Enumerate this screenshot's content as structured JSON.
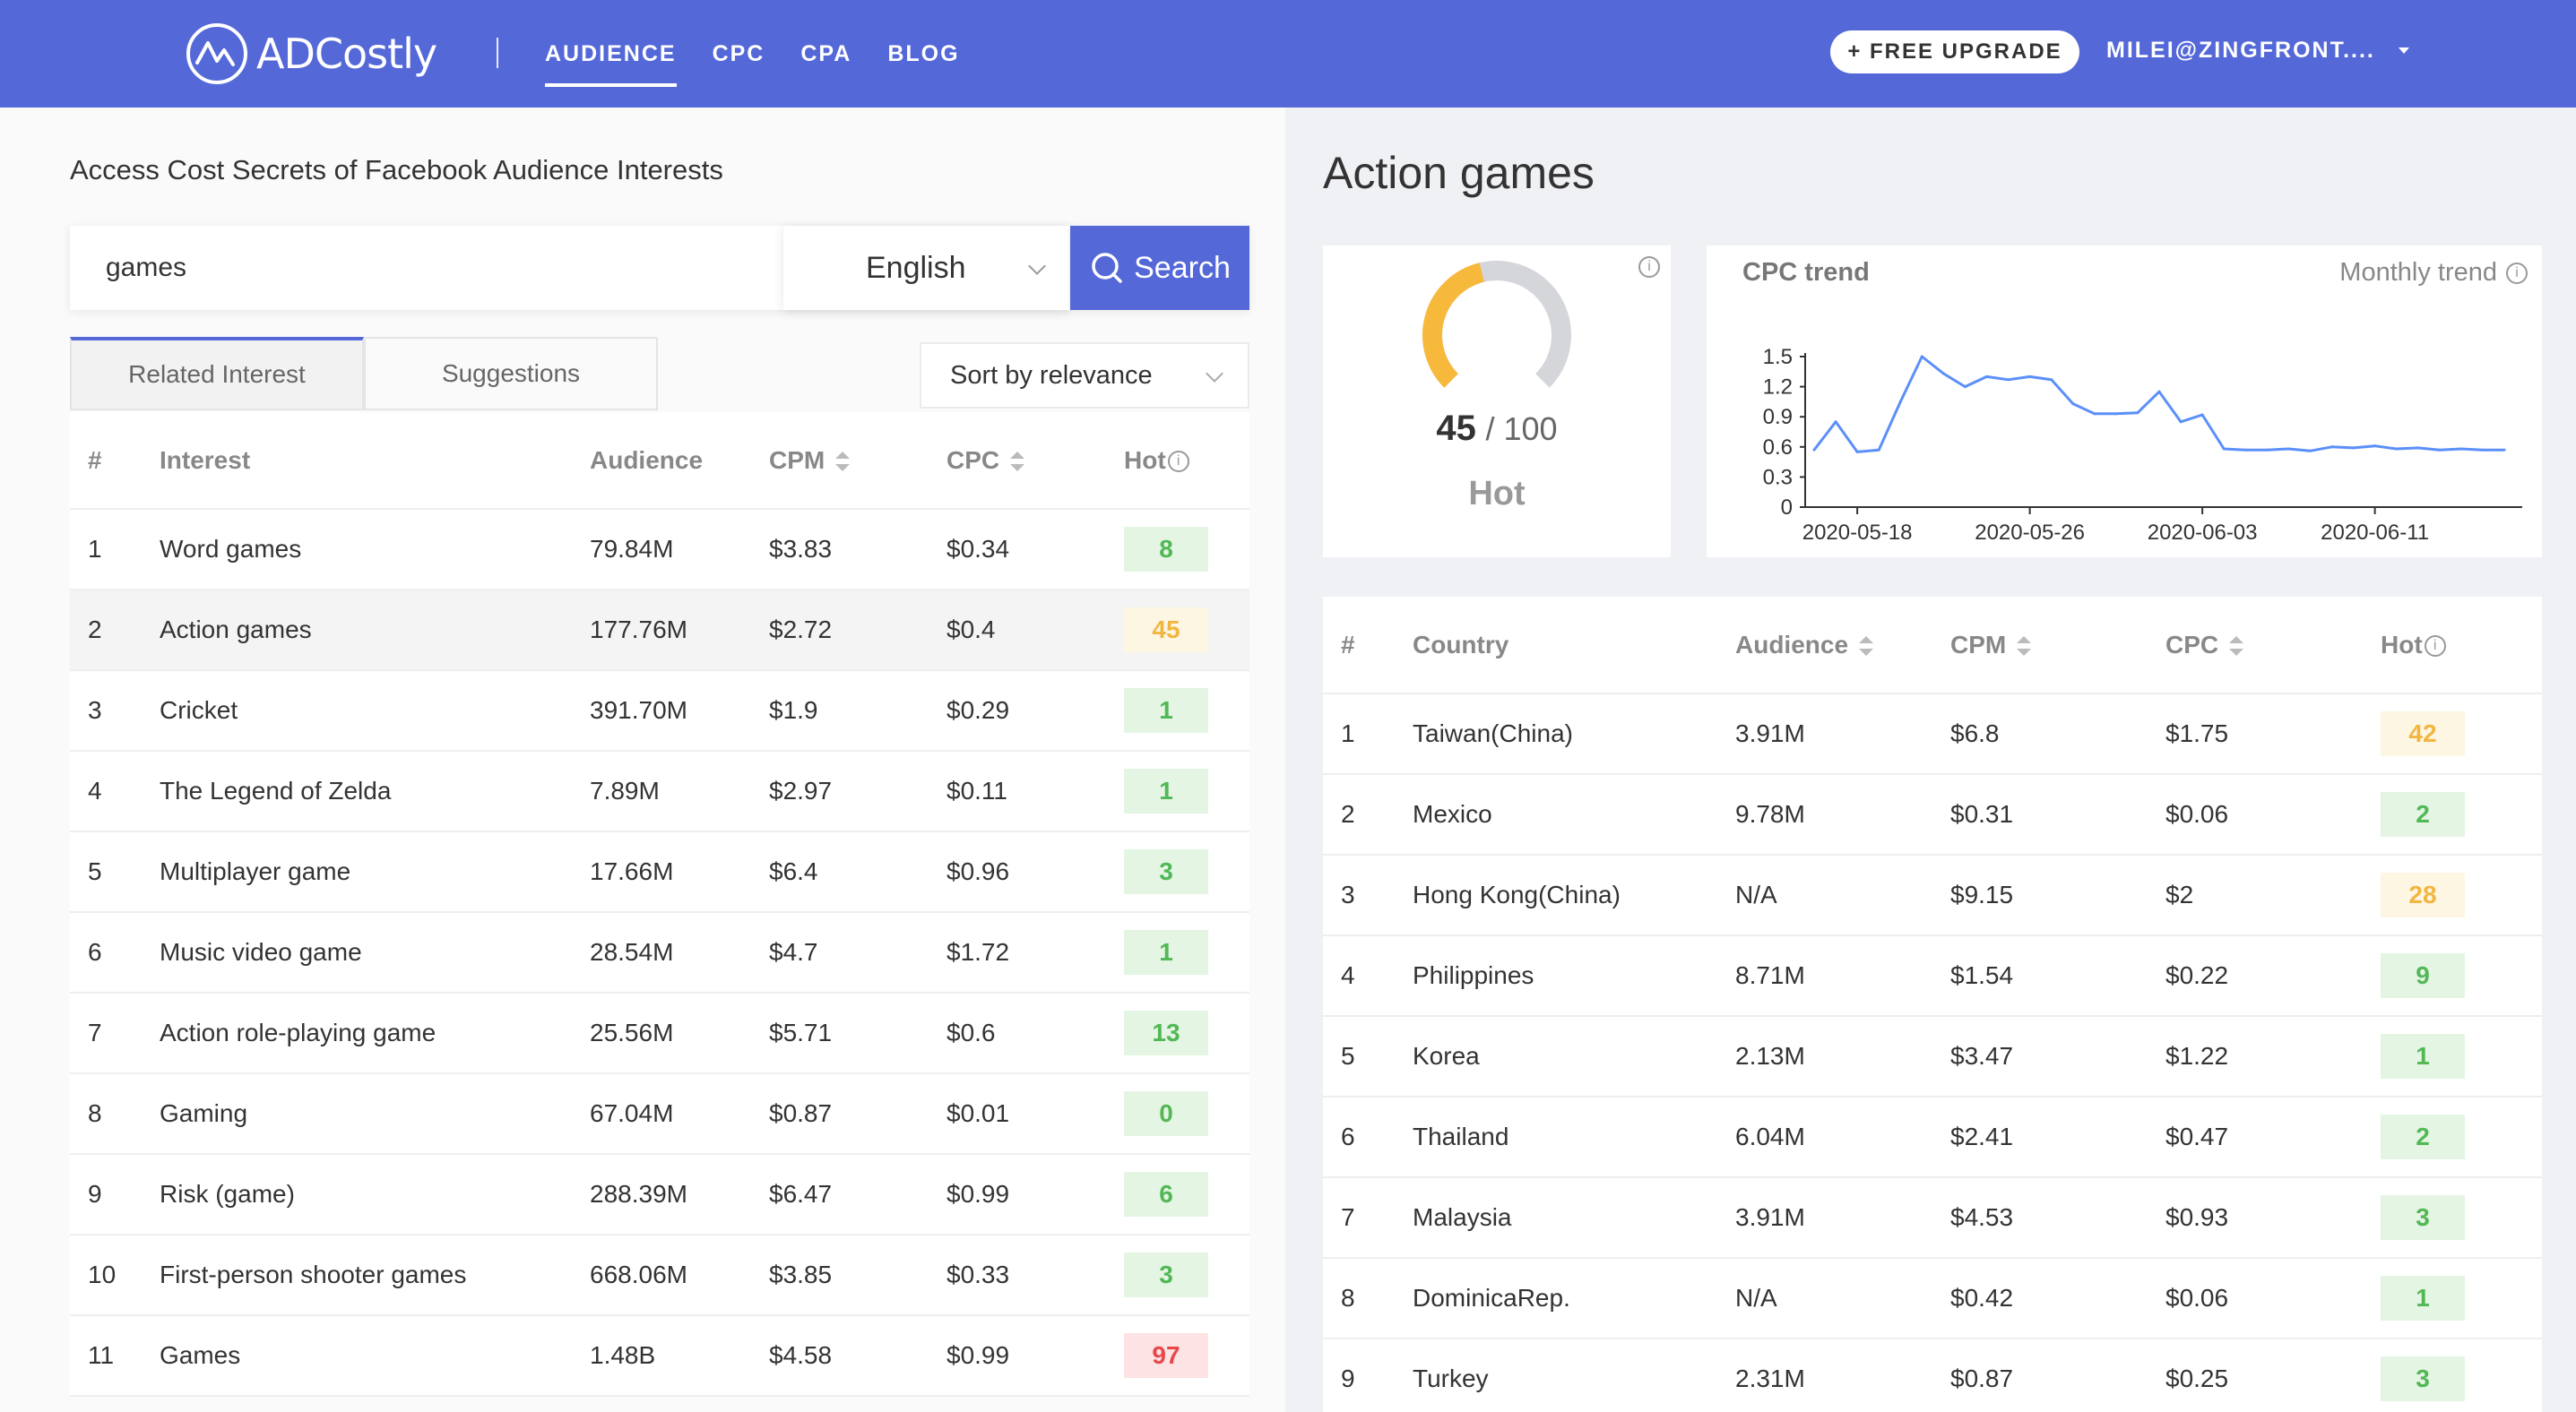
{
  "header": {
    "brand": "ADCostly",
    "nav": [
      "AUDIENCE",
      "CPC",
      "CPA",
      "BLOG"
    ],
    "upgrade": "+ FREE UPGRADE",
    "user": "MILEI@ZINGFRONT...."
  },
  "left": {
    "title": "Access Cost Secrets of Facebook Audience Interests",
    "search_value": "games",
    "language": "English",
    "search_button": "Search",
    "tabs": [
      "Related Interest",
      "Suggestions"
    ],
    "sort": "Sort by relevance",
    "columns": [
      "#",
      "Interest",
      "Audience",
      "CPM",
      "CPC",
      "Hot"
    ],
    "rows": [
      {
        "n": "1",
        "interest": "Word games",
        "audience": "79.84M",
        "cpm": "$3.83",
        "cpc": "$0.34",
        "hot": "8",
        "level": "green"
      },
      {
        "n": "2",
        "interest": "Action games",
        "audience": "177.76M",
        "cpm": "$2.72",
        "cpc": "$0.4",
        "hot": "45",
        "level": "yellow"
      },
      {
        "n": "3",
        "interest": "Cricket",
        "audience": "391.70M",
        "cpm": "$1.9",
        "cpc": "$0.29",
        "hot": "1",
        "level": "green"
      },
      {
        "n": "4",
        "interest": "The Legend of Zelda",
        "audience": "7.89M",
        "cpm": "$2.97",
        "cpc": "$0.11",
        "hot": "1",
        "level": "green"
      },
      {
        "n": "5",
        "interest": "Multiplayer game",
        "audience": "17.66M",
        "cpm": "$6.4",
        "cpc": "$0.96",
        "hot": "3",
        "level": "green"
      },
      {
        "n": "6",
        "interest": "Music video game",
        "audience": "28.54M",
        "cpm": "$4.7",
        "cpc": "$1.72",
        "hot": "1",
        "level": "green"
      },
      {
        "n": "7",
        "interest": "Action role-playing game",
        "audience": "25.56M",
        "cpm": "$5.71",
        "cpc": "$0.6",
        "hot": "13",
        "level": "green"
      },
      {
        "n": "8",
        "interest": "Gaming",
        "audience": "67.04M",
        "cpm": "$0.87",
        "cpc": "$0.01",
        "hot": "0",
        "level": "green"
      },
      {
        "n": "9",
        "interest": "Risk (game)",
        "audience": "288.39M",
        "cpm": "$6.47",
        "cpc": "$0.99",
        "hot": "6",
        "level": "green"
      },
      {
        "n": "10",
        "interest": "First-person shooter games",
        "audience": "668.06M",
        "cpm": "$3.85",
        "cpc": "$0.33",
        "hot": "3",
        "level": "green"
      },
      {
        "n": "11",
        "interest": "Games",
        "audience": "1.48B",
        "cpm": "$4.58",
        "cpc": "$0.99",
        "hot": "97",
        "level": "red"
      }
    ]
  },
  "right": {
    "title": "Action games",
    "score": {
      "value": "45",
      "max": "/ 100",
      "label": "Hot",
      "gauge_fraction": 0.45
    },
    "trend": {
      "title": "CPC trend",
      "subtitle": "Monthly trend"
    },
    "columns": [
      "#",
      "Country",
      "Audience",
      "CPM",
      "CPC",
      "Hot"
    ],
    "rows": [
      {
        "n": "1",
        "country": "Taiwan(China)",
        "audience": "3.91M",
        "cpm": "$6.8",
        "cpc": "$1.75",
        "hot": "42",
        "level": "yellow"
      },
      {
        "n": "2",
        "country": "Mexico",
        "audience": "9.78M",
        "cpm": "$0.31",
        "cpc": "$0.06",
        "hot": "2",
        "level": "green"
      },
      {
        "n": "3",
        "country": "Hong Kong(China)",
        "audience": "N/A",
        "cpm": "$9.15",
        "cpc": "$2",
        "hot": "28",
        "level": "yellow"
      },
      {
        "n": "4",
        "country": "Philippines",
        "audience": "8.71M",
        "cpm": "$1.54",
        "cpc": "$0.22",
        "hot": "9",
        "level": "green"
      },
      {
        "n": "5",
        "country": "Korea",
        "audience": "2.13M",
        "cpm": "$3.47",
        "cpc": "$1.22",
        "hot": "1",
        "level": "green"
      },
      {
        "n": "6",
        "country": "Thailand",
        "audience": "6.04M",
        "cpm": "$2.41",
        "cpc": "$0.47",
        "hot": "2",
        "level": "green"
      },
      {
        "n": "7",
        "country": "Malaysia",
        "audience": "3.91M",
        "cpm": "$4.53",
        "cpc": "$0.93",
        "hot": "3",
        "level": "green"
      },
      {
        "n": "8",
        "country": "DominicaRep.",
        "audience": "N/A",
        "cpm": "$0.42",
        "cpc": "$0.06",
        "hot": "1",
        "level": "green"
      },
      {
        "n": "9",
        "country": "Turkey",
        "audience": "2.31M",
        "cpm": "$0.87",
        "cpc": "$0.25",
        "hot": "3",
        "level": "green"
      }
    ]
  },
  "chart_data": {
    "type": "line",
    "title": "CPC trend",
    "x": [
      "2020-05-16",
      "2020-05-17",
      "2020-05-18",
      "2020-05-19",
      "2020-05-20",
      "2020-05-21",
      "2020-05-22",
      "2020-05-23",
      "2020-05-24",
      "2020-05-25",
      "2020-05-26",
      "2020-05-27",
      "2020-05-28",
      "2020-05-29",
      "2020-05-30",
      "2020-05-31",
      "2020-06-01",
      "2020-06-02",
      "2020-06-03",
      "2020-06-04",
      "2020-06-05",
      "2020-06-06",
      "2020-06-07",
      "2020-06-08",
      "2020-06-09",
      "2020-06-10",
      "2020-06-11",
      "2020-06-12",
      "2020-06-13",
      "2020-06-14",
      "2020-06-15",
      "2020-06-16",
      "2020-06-17"
    ],
    "x_ticks": [
      "2020-05-18",
      "2020-05-26",
      "2020-06-03",
      "2020-06-11"
    ],
    "series": [
      {
        "values": [
          0.57,
          0.85,
          0.55,
          0.57,
          1.05,
          1.5,
          1.33,
          1.2,
          1.3,
          1.27,
          1.3,
          1.27,
          1.03,
          0.93,
          0.93,
          0.94,
          1.15,
          0.85,
          0.92,
          0.58,
          0.57,
          0.57,
          0.58,
          0.56,
          0.6,
          0.59,
          0.61,
          0.58,
          0.59,
          0.57,
          0.58,
          0.57,
          0.57
        ]
      }
    ],
    "ylim": [
      0,
      1.5
    ],
    "yticks": [
      "1.5",
      "1.2",
      "0.9",
      "0.6",
      "0.3",
      "0"
    ],
    "color": "#5b8ff9"
  },
  "colors": {
    "brand": "#5468d8",
    "hot_green": "#52b856",
    "hot_yellow": "#f2b640",
    "hot_red": "#e8474a",
    "gauge": "#f7b93c"
  }
}
